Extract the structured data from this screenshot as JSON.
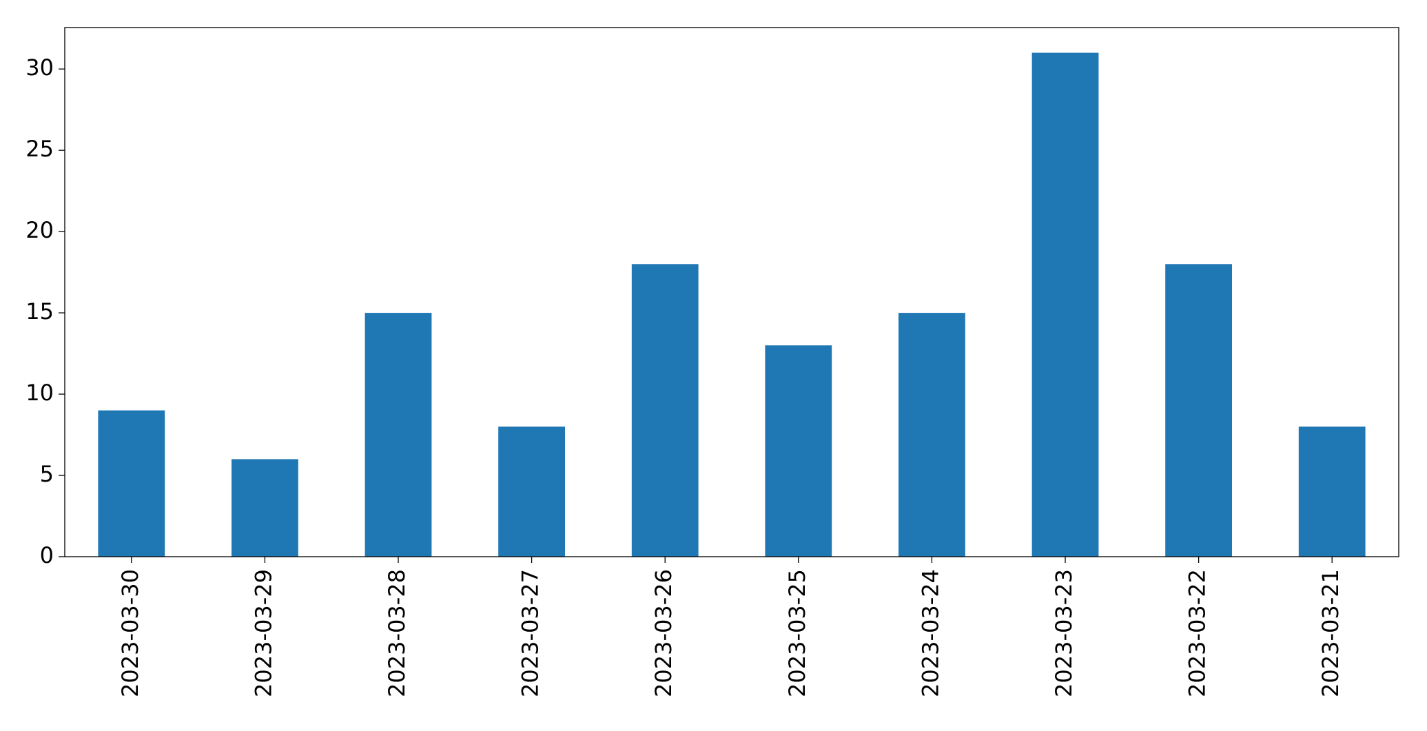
{
  "chart_data": {
    "type": "bar",
    "categories": [
      "2023-03-30",
      "2023-03-29",
      "2023-03-28",
      "2023-03-27",
      "2023-03-26",
      "2023-03-25",
      "2023-03-24",
      "2023-03-23",
      "2023-03-22",
      "2023-03-21"
    ],
    "values": [
      9,
      6,
      15,
      8,
      18,
      13,
      15,
      31,
      18,
      8
    ],
    "color": "#1f77b4",
    "ylim": [
      0,
      32.55
    ],
    "yticks": [
      0,
      5,
      10,
      15,
      20,
      25,
      30
    ],
    "grid": false
  }
}
